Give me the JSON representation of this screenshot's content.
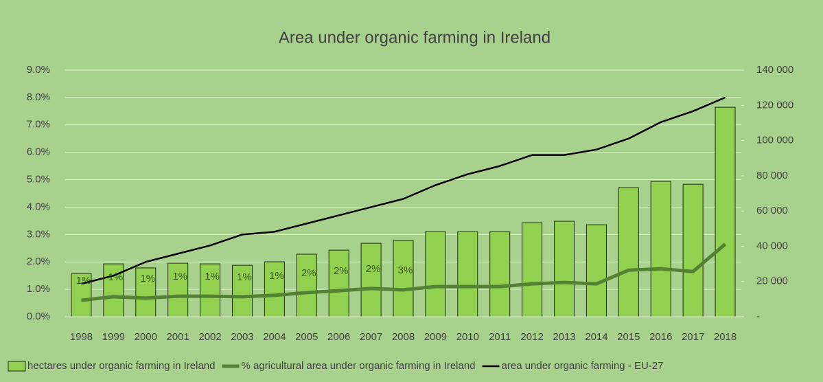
{
  "chart_data": {
    "type": "bar-line",
    "title": "Area under organic farming in Ireland",
    "categories": [
      "1998",
      "1999",
      "2000",
      "2001",
      "2002",
      "2003",
      "2004",
      "2005",
      "2006",
      "2007",
      "2008",
      "2009",
      "2010",
      "2011",
      "2012",
      "2013",
      "2014",
      "2015",
      "2016",
      "2017",
      "2018"
    ],
    "series": [
      {
        "name": "hectares under organic farming in Ireland",
        "type": "bar",
        "axis": "y2",
        "color": "#92d050",
        "values": [
          24500,
          30000,
          27700,
          30400,
          30000,
          29200,
          31200,
          35500,
          37800,
          41700,
          43300,
          48300,
          48300,
          48300,
          53400,
          54200,
          52200,
          73300,
          76800,
          75200,
          118900
        ]
      },
      {
        "name": "% agricultural area under organic farming in Ireland",
        "type": "line",
        "axis": "y",
        "color": "#548235",
        "values": [
          0.6,
          0.73,
          0.68,
          0.75,
          0.75,
          0.73,
          0.78,
          0.88,
          0.95,
          1.03,
          0.98,
          1.1,
          1.1,
          1.1,
          1.2,
          1.25,
          1.2,
          1.7,
          1.75,
          1.65,
          2.65
        ],
        "value_labels": [
          "1%",
          "1%",
          "1%",
          "1%",
          "1%",
          "1%",
          "1%",
          "2%",
          "2%",
          "2%",
          "3%"
        ]
      },
      {
        "name": "area under organic farming - EU-27",
        "type": "line",
        "axis": "y",
        "color": "#000000",
        "values": [
          1.2,
          1.5,
          2.0,
          2.3,
          2.6,
          3.0,
          3.1,
          3.4,
          3.7,
          4.0,
          4.3,
          4.8,
          5.2,
          5.5,
          5.9,
          5.9,
          6.1,
          6.5,
          7.1,
          7.5,
          8.0
        ]
      }
    ],
    "ylim": [
      0,
      9
    ],
    "yticks": [
      {
        "value": 0,
        "label": "0.0%"
      },
      {
        "value": 1,
        "label": "1.0%"
      },
      {
        "value": 2,
        "label": "2.0%"
      },
      {
        "value": 3,
        "label": "3.0%"
      },
      {
        "value": 4,
        "label": "4.0%"
      },
      {
        "value": 5,
        "label": "5.0%"
      },
      {
        "value": 6,
        "label": "6.0%"
      },
      {
        "value": 7,
        "label": "7.0%"
      },
      {
        "value": 8,
        "label": "8.0%"
      },
      {
        "value": 9,
        "label": "9.0%"
      }
    ],
    "y2lim": [
      0,
      140000
    ],
    "y2ticks": [
      {
        "value": 0,
        "label": "-"
      },
      {
        "value": 20000,
        "label": "20 000"
      },
      {
        "value": 40000,
        "label": "40 000"
      },
      {
        "value": 60000,
        "label": "60 000"
      },
      {
        "value": 80000,
        "label": "80 000"
      },
      {
        "value": 100000,
        "label": "100 000"
      },
      {
        "value": 120000,
        "label": "120 000"
      },
      {
        "value": 140000,
        "label": "140 000"
      }
    ],
    "grid": true,
    "legend": "bottom"
  }
}
